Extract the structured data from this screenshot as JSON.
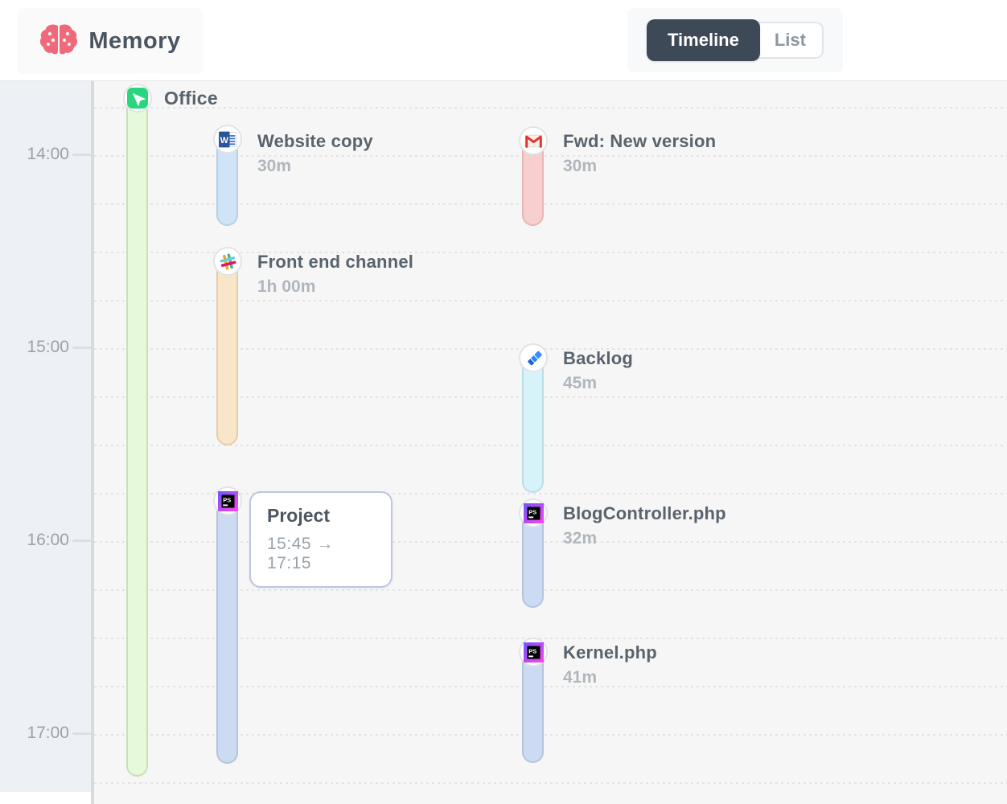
{
  "header": {
    "app_name": "Memory",
    "brand_color": "#ee6a7b",
    "view_toggle": {
      "active_bg": "#3d4956",
      "options": [
        {
          "label": "Timeline",
          "active": true
        },
        {
          "label": "List",
          "active": false
        }
      ]
    }
  },
  "time_axis": {
    "labels": [
      "14:00",
      "15:00",
      "16:00",
      "17:00"
    ]
  },
  "timeline": {
    "group": {
      "title": "Office",
      "icon": "location-arrow-icon",
      "accent": "#2ad57f",
      "color": "#e6fadb"
    },
    "entries": [
      {
        "title": "Website copy",
        "duration": "30m",
        "app": "ms-word",
        "color": "#d0e4f7"
      },
      {
        "title": "Fwd: New version",
        "duration": "30m",
        "app": "gmail",
        "color": "#f8cfce"
      },
      {
        "title": "Front end channel",
        "duration": "1h 00m",
        "app": "slack",
        "color": "#f9e6ca"
      },
      {
        "title": "Backlog",
        "duration": "45m",
        "app": "jira",
        "color": "#d8f2f9"
      },
      {
        "app": "phpstorm",
        "color": "#ccdbf1",
        "tooltip": {
          "title": "Project",
          "time_range": "15:45 → 17:15"
        }
      },
      {
        "title": "BlogController.php",
        "duration": "32m",
        "app": "phpstorm",
        "color": "#ccdbf1"
      },
      {
        "title": "Kernel.php",
        "duration": "41m",
        "app": "phpstorm",
        "color": "#ccdbf1"
      }
    ]
  }
}
